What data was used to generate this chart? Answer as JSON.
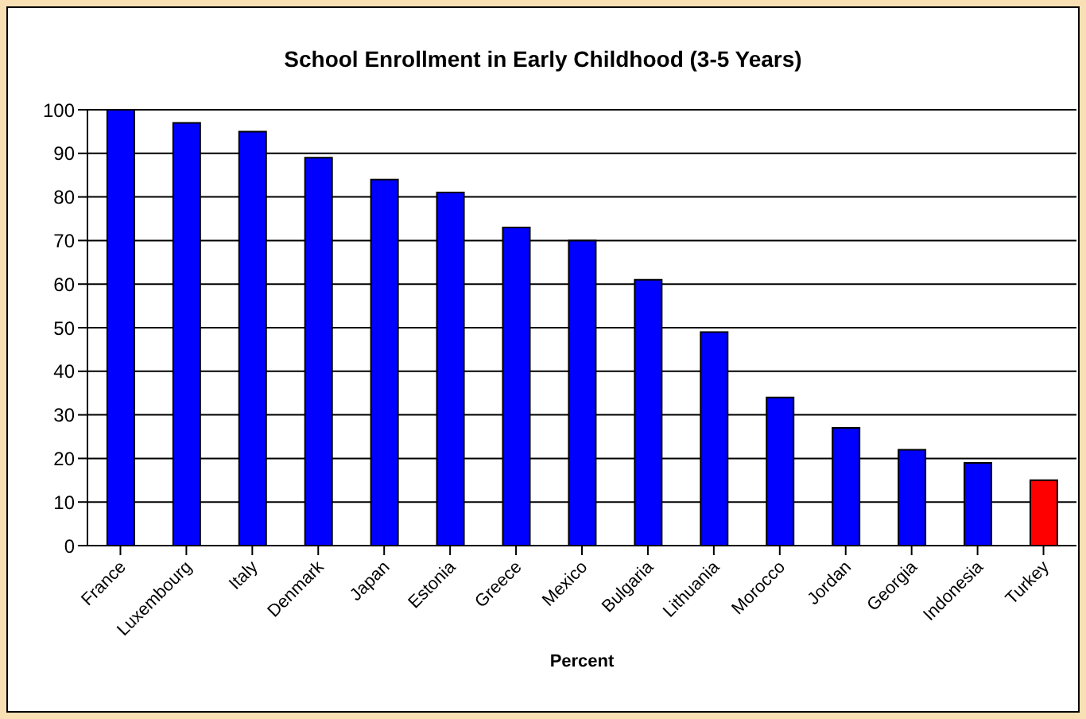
{
  "chart_data": {
    "type": "bar",
    "title": "School Enrollment in Early Childhood (3-5 Years)",
    "xlabel": "Percent",
    "categories": [
      "France",
      "Luxembourg",
      "Italy",
      "Denmark",
      "Japan",
      "Estonia",
      "Greece",
      "Mexico",
      "Bulgaria",
      "Lithuania",
      "Morocco",
      "Jordan",
      "Georgia",
      "Indonesia",
      "Turkey"
    ],
    "values": [
      100,
      97,
      95,
      89,
      84,
      81,
      73,
      70,
      61,
      49,
      34,
      27,
      22,
      19,
      15
    ],
    "colors": [
      "#0000ff",
      "#0000ff",
      "#0000ff",
      "#0000ff",
      "#0000ff",
      "#0000ff",
      "#0000ff",
      "#0000ff",
      "#0000ff",
      "#0000ff",
      "#0000ff",
      "#0000ff",
      "#0000ff",
      "#0000ff",
      "#ff0000"
    ],
    "ylim": [
      0,
      100
    ],
    "yticks": [
      0,
      10,
      20,
      30,
      40,
      50,
      60,
      70,
      80,
      90,
      100
    ],
    "grid": "y"
  }
}
